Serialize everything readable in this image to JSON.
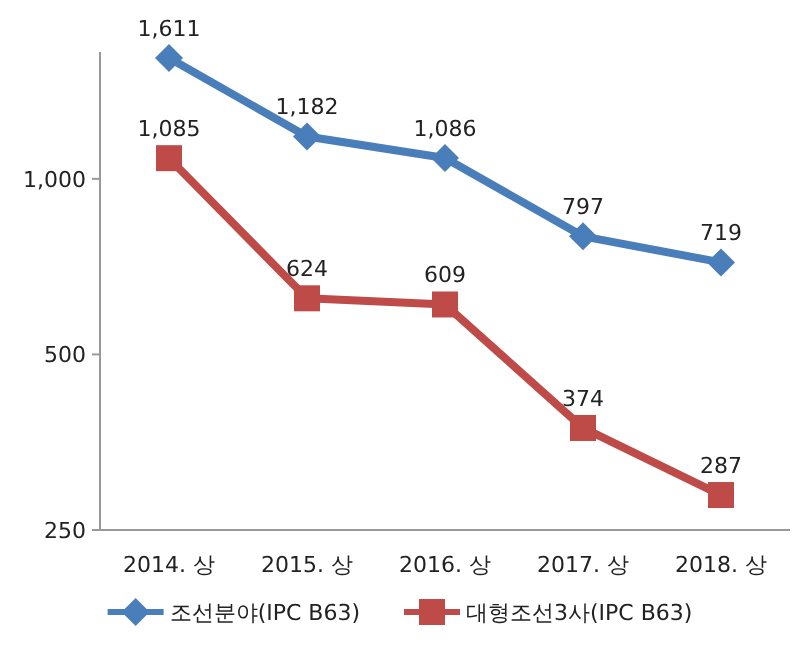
{
  "chart_data": {
    "type": "line",
    "log": "y",
    "legend": "bottom",
    "categories": [
      "2014. 상",
      "2015. 상",
      "2016. 상",
      "2017. 상",
      "2018. 상"
    ],
    "ylim": [
      250,
      1650
    ],
    "yticks": [
      250,
      500,
      {
        "value": 1000,
        "label": "1,000"
      }
    ],
    "series": [
      {
        "name": "조선분야(IPC B63)",
        "color": "#4a7ebb",
        "marker": "diamond",
        "values": [
          1611,
          1182,
          1086,
          797,
          719
        ],
        "value_labels": [
          "1,611",
          "1,182",
          "1,086",
          "797",
          "719"
        ]
      },
      {
        "name": "대형조선3사(IPC B63)",
        "color": "#be4b48",
        "marker": "square",
        "values": [
          1085,
          624,
          609,
          374,
          287
        ],
        "value_labels": [
          "1,085",
          "624",
          "609",
          "374",
          "287"
        ]
      }
    ]
  }
}
